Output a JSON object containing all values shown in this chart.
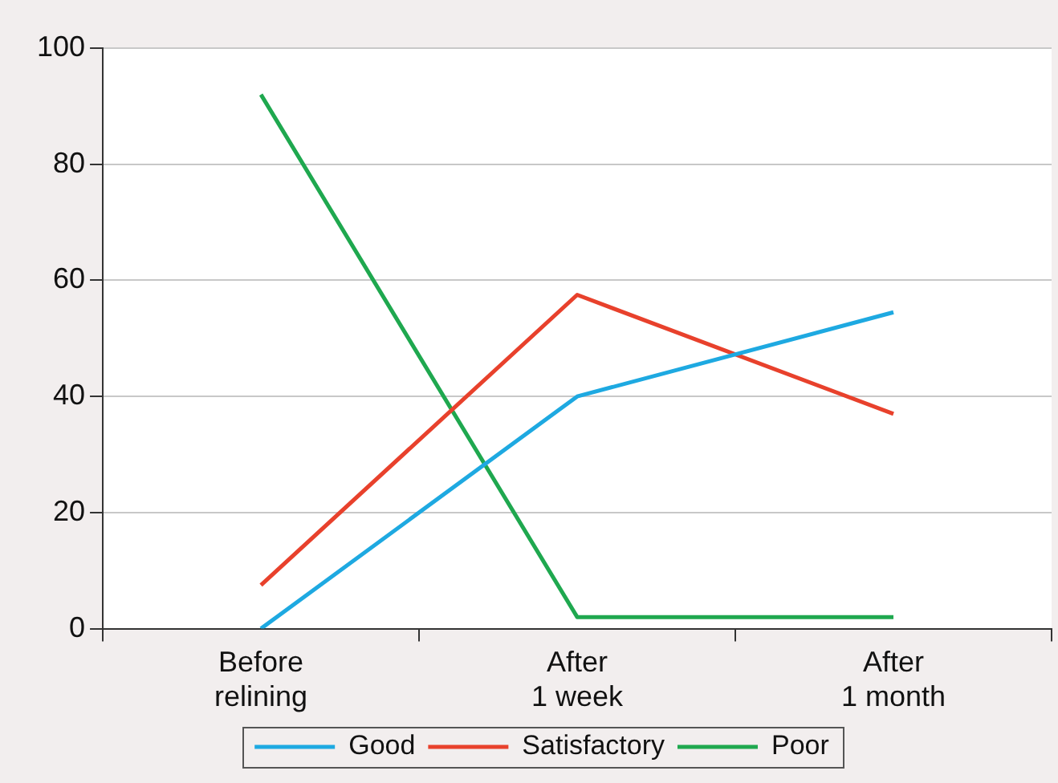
{
  "chart_data": {
    "type": "line",
    "categories": [
      "Before relining",
      "After 1 week",
      "After 1 month"
    ],
    "series": [
      {
        "name": "Good",
        "color": "#1ea9e1",
        "values": [
          0,
          40,
          54.5
        ]
      },
      {
        "name": "Satisfactory",
        "color": "#e8412c",
        "values": [
          7.5,
          57.5,
          37
        ]
      },
      {
        "name": "Poor",
        "color": "#1fa84f",
        "values": [
          92,
          2,
          2
        ]
      }
    ],
    "ylim": [
      0,
      100
    ],
    "yticks": [
      0,
      20,
      40,
      60,
      80,
      100
    ],
    "grid": "y",
    "legend": "bottom",
    "marker": "none",
    "line_style": "solid"
  }
}
